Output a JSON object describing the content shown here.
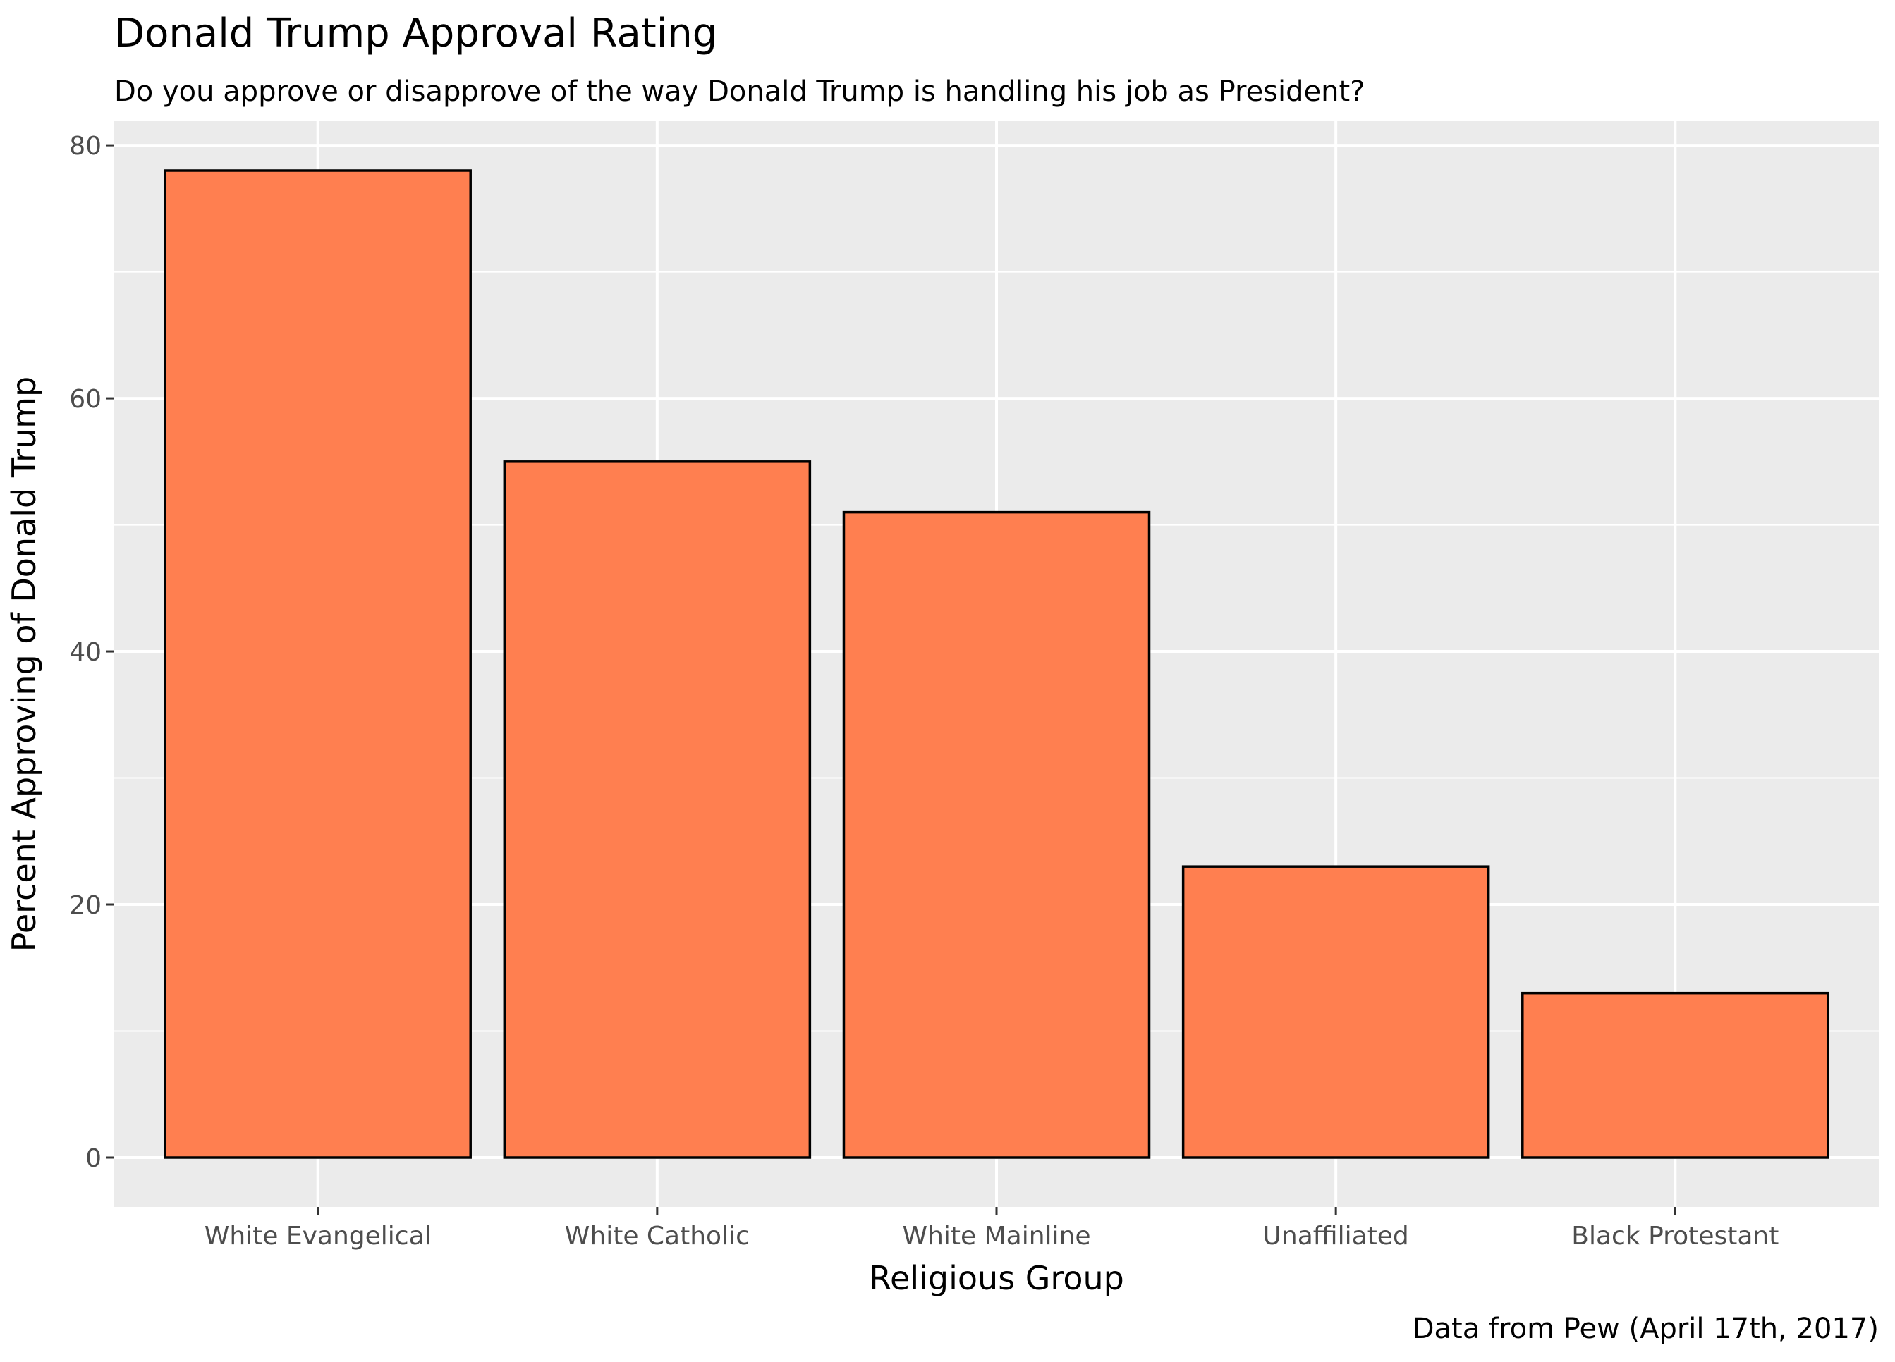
{
  "chart_data": {
    "type": "bar",
    "title": "Donald Trump Approval Rating",
    "subtitle": "Do you approve or disapprove of the way Donald Trump is handling his job as President?",
    "xlabel": "Religious Group",
    "ylabel": "Percent Approving of Donald Trump",
    "caption": "Data from Pew (April 17th, 2017)",
    "categories": [
      "White Evangelical",
      "White Catholic",
      "White Mainline",
      "Unaffiliated",
      "Black Protestant"
    ],
    "values": [
      78,
      55,
      51,
      23,
      13
    ],
    "ylim": [
      -3.9,
      81.9
    ],
    "yticks": [
      0,
      20,
      40,
      60,
      80
    ],
    "ytick_labels": [
      "0",
      "20",
      "40",
      "60",
      "80"
    ],
    "grid": true,
    "colors": {
      "bar_fill": "#ff7f50",
      "bar_stroke": "#000000",
      "panel_background": "#ebebeb",
      "grid": "#ffffff",
      "tick_text": "#4d4d4d",
      "tick_mark": "#333333"
    }
  }
}
